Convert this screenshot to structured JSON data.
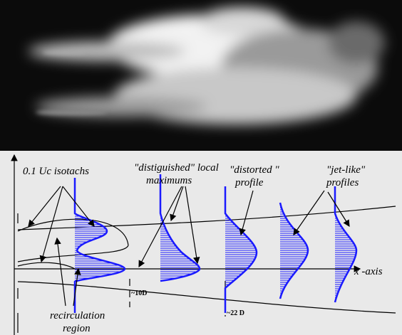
{
  "diagram": {
    "labels": {
      "isotachs": "0.1 Uc isotachs",
      "maxima": [
        "\"distiguished\" local",
        "maximums"
      ],
      "distorted": [
        "\"distorted \"",
        "profile"
      ],
      "jet_like": [
        "\"jet-like\"",
        "profiles"
      ],
      "x_axis": "x -axis",
      "recirculation": [
        "recirculation",
        "region"
      ],
      "mark_10d": "~10D",
      "mark_22d": "~22 D"
    }
  }
}
